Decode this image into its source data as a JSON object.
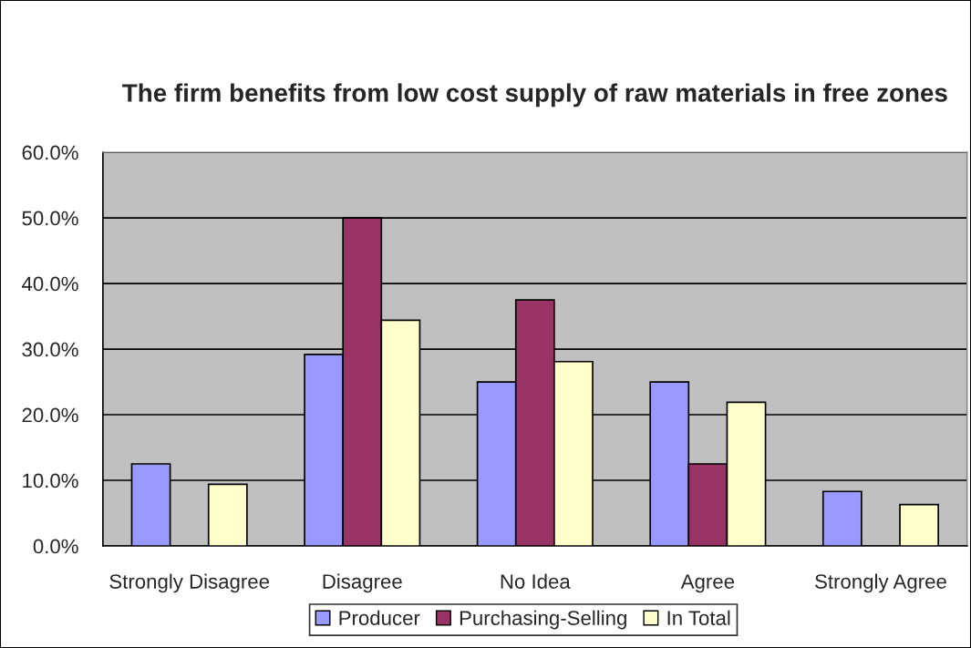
{
  "chart_data": {
    "type": "bar",
    "title": "The firm benefits from low cost supply of raw materials in free zones",
    "categories": [
      "Strongly Disagree",
      "Disagree",
      "No Idea",
      "Agree",
      "Strongly Agree"
    ],
    "series": [
      {
        "name": "Producer",
        "color": "#9999ff",
        "values": [
          12.5,
          29.2,
          25.0,
          25.0,
          8.3
        ]
      },
      {
        "name": "Purchasing-Selling",
        "color": "#993366",
        "values": [
          null,
          50.0,
          37.5,
          12.5,
          null
        ]
      },
      {
        "name": "In Total",
        "color": "#ffffcc",
        "values": [
          9.4,
          34.4,
          28.1,
          21.9,
          6.3
        ]
      }
    ],
    "ylim": [
      0,
      60
    ],
    "yticks": [
      {
        "value": 0,
        "label": "0.0%"
      },
      {
        "value": 10,
        "label": "10.0%"
      },
      {
        "value": 20,
        "label": "20.0%"
      },
      {
        "value": 30,
        "label": "30.0%"
      },
      {
        "value": 40,
        "label": "40.0%"
      },
      {
        "value": 50,
        "label": "50.0%"
      },
      {
        "value": 60,
        "label": "60.0%"
      }
    ],
    "grid": "y",
    "legend": "bottom"
  }
}
